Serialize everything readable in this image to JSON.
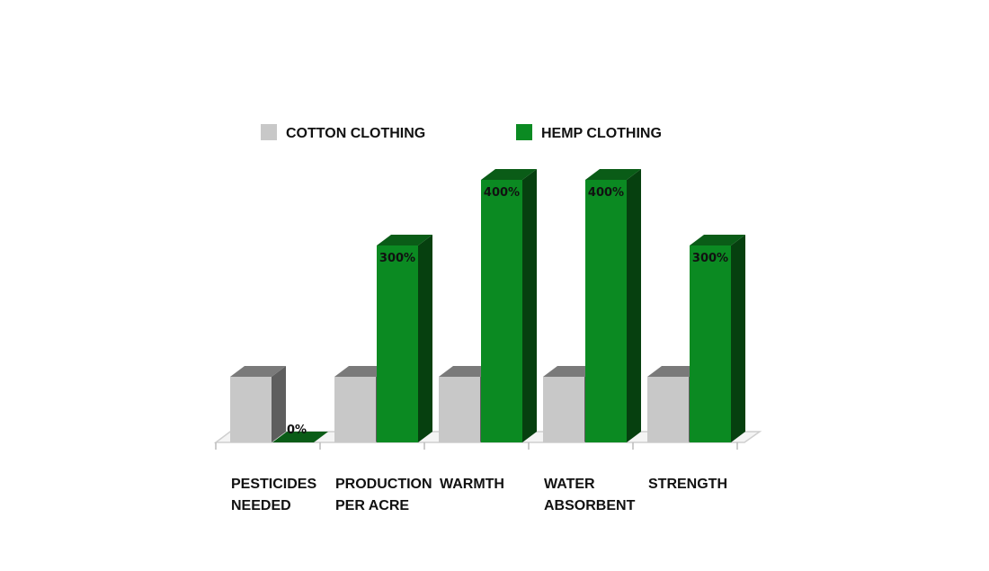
{
  "chart_data": {
    "type": "bar",
    "categories": [
      [
        "PESTICIDES",
        "NEEDED"
      ],
      [
        "PRODUCTION",
        "PER ACRE"
      ],
      [
        "WARMTH"
      ],
      [
        "WATER",
        "ABSORBENT"
      ],
      [
        "STRENGTH"
      ]
    ],
    "series": [
      {
        "name": "COTTON CLOTHING",
        "values": [
          100,
          100,
          100,
          100,
          100
        ],
        "color": "#c8c8c8",
        "labels": [
          "",
          "",
          "",
          "",
          ""
        ]
      },
      {
        "name": "HEMP CLOTHING",
        "values": [
          0,
          300,
          400,
          400,
          300
        ],
        "color": "#0b8a22",
        "labels": [
          "0%",
          "300%",
          "400%",
          "400%",
          "300%"
        ]
      }
    ],
    "title": "",
    "xlabel": "",
    "ylabel": "",
    "ylim": [
      0,
      400
    ],
    "grid": false,
    "legend": "top"
  }
}
